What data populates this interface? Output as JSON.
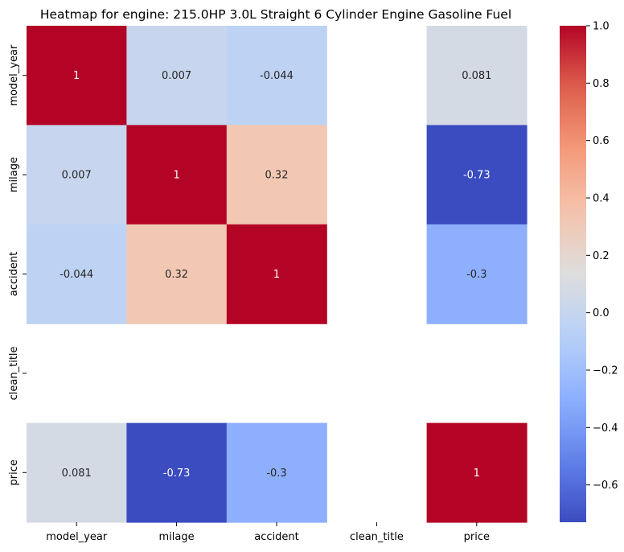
{
  "chart_data": {
    "type": "heatmap",
    "title": "Heatmap for engine: 215.0HP 3.0L Straight 6 Cylinder Engine Gasoline Fuel",
    "rows": [
      "model_year",
      "milage",
      "accident",
      "clean_title",
      "price"
    ],
    "columns": [
      "model_year",
      "milage",
      "accident",
      "clean_title",
      "price"
    ],
    "values": [
      [
        1,
        0.007,
        -0.044,
        null,
        0.081
      ],
      [
        0.007,
        1,
        0.32,
        null,
        -0.73
      ],
      [
        -0.044,
        0.32,
        1,
        null,
        -0.3
      ],
      [
        null,
        null,
        null,
        null,
        null
      ],
      [
        0.081,
        -0.73,
        -0.3,
        null,
        1
      ]
    ],
    "annotations": [
      [
        "1",
        "0.007",
        "-0.044",
        "",
        "0.081"
      ],
      [
        "0.007",
        "1",
        "0.32",
        "",
        "-0.73"
      ],
      [
        "-0.044",
        "0.32",
        "1",
        "",
        "-0.3"
      ],
      [
        "",
        "",
        "",
        "",
        ""
      ],
      [
        "0.081",
        "-0.73",
        "-0.3",
        "",
        "1"
      ]
    ],
    "colormap": "coolwarm",
    "color_range": [
      -0.73,
      1.0
    ],
    "colorbar_ticks": [
      1.0,
      0.8,
      0.6,
      0.4,
      0.2,
      0.0,
      -0.2,
      -0.4,
      -0.6
    ],
    "colorbar_tick_labels": [
      "1.0",
      "0.8",
      "0.6",
      "0.4",
      "0.2",
      "0.0",
      "−0.2",
      "−0.4",
      "−0.6"
    ],
    "grid": false,
    "legend": "colorbar-right"
  }
}
